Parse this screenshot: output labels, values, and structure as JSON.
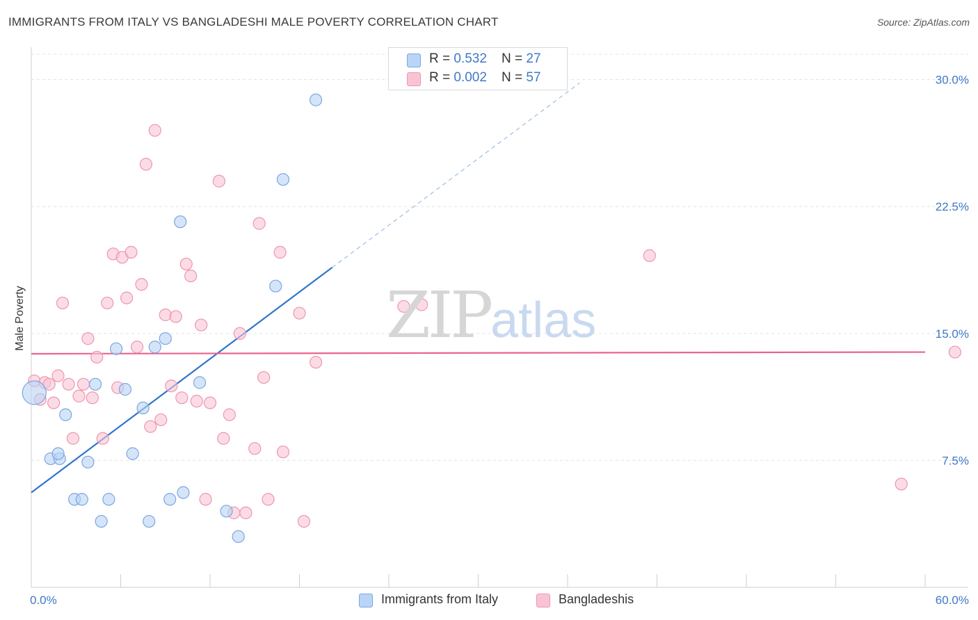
{
  "chart_data": {
    "type": "scatter",
    "title": "IMMIGRANTS FROM ITALY VS BANGLADESHI MALE POVERTY CORRELATION CHART",
    "source": "Source: ZipAtlas.com",
    "ylabel": "Male Poverty",
    "xlabel": "",
    "xlim": [
      0,
      60
    ],
    "ylim": [
      0,
      31.5
    ],
    "x_tick_labels": [
      "0.0%",
      "60.0%"
    ],
    "y_ticks": [
      7.5,
      15.0,
      22.5,
      30.0
    ],
    "y_tick_labels": [
      "7.5%",
      "15.0%",
      "22.5%",
      "30.0%"
    ],
    "colors": {
      "italy_fill": "#b9d4f5",
      "italy_stroke": "#7aa6e0",
      "italy_line": "#2f74cc",
      "bangladeshi_fill": "#f8c4d3",
      "bangladeshi_stroke": "#ee95b0",
      "bangladeshi_line": "#e8648f",
      "tick_text": "#3f78c8",
      "grid": "#e3e3e3"
    },
    "legend": {
      "rows": [
        {
          "r_label": "R = ",
          "r_value": "0.532",
          "n_label": "N = ",
          "n_value": "27"
        },
        {
          "r_label": "R = ",
          "r_value": "0.002",
          "n_label": "N = ",
          "n_value": "57"
        }
      ]
    },
    "series": [
      {
        "name": "Immigrants from Italy",
        "trend": {
          "x0": 0,
          "y0": 5.6,
          "x1": 20.2,
          "y1": 18.9,
          "dash_x1": 36.8,
          "dash_y1": 29.8
        },
        "points": [
          [
            0.2,
            11.5
          ],
          [
            1.3,
            7.6
          ],
          [
            1.9,
            7.6
          ],
          [
            1.8,
            7.9
          ],
          [
            2.3,
            10.2
          ],
          [
            2.9,
            5.2
          ],
          [
            3.4,
            5.2
          ],
          [
            3.8,
            7.4
          ],
          [
            4.3,
            12.0
          ],
          [
            4.7,
            3.9
          ],
          [
            5.2,
            5.2
          ],
          [
            5.7,
            14.1
          ],
          [
            6.3,
            11.7
          ],
          [
            6.8,
            7.9
          ],
          [
            7.5,
            10.6
          ],
          [
            7.9,
            3.9
          ],
          [
            8.3,
            14.2
          ],
          [
            9.0,
            14.7
          ],
          [
            9.3,
            5.2
          ],
          [
            10.0,
            21.6
          ],
          [
            10.2,
            5.6
          ],
          [
            11.3,
            12.1
          ],
          [
            13.1,
            4.5
          ],
          [
            13.9,
            3.0
          ],
          [
            16.4,
            17.8
          ],
          [
            16.9,
            24.1
          ],
          [
            19.1,
            28.8
          ]
        ]
      },
      {
        "name": "Bangladeshis",
        "trend": {
          "x0": 0,
          "y0": 13.8,
          "x1": 60,
          "y1": 13.9
        },
        "points": [
          [
            0.2,
            12.2
          ],
          [
            0.6,
            11.1
          ],
          [
            0.9,
            12.1
          ],
          [
            1.2,
            12.0
          ],
          [
            1.5,
            10.9
          ],
          [
            1.8,
            12.5
          ],
          [
            2.1,
            16.8
          ],
          [
            2.5,
            12.0
          ],
          [
            2.8,
            8.8
          ],
          [
            3.2,
            11.3
          ],
          [
            3.5,
            12.0
          ],
          [
            3.8,
            14.7
          ],
          [
            4.1,
            11.2
          ],
          [
            4.4,
            13.6
          ],
          [
            4.8,
            8.8
          ],
          [
            5.1,
            16.8
          ],
          [
            5.5,
            19.7
          ],
          [
            5.8,
            11.8
          ],
          [
            6.1,
            19.5
          ],
          [
            6.4,
            17.1
          ],
          [
            6.7,
            19.8
          ],
          [
            7.1,
            14.2
          ],
          [
            7.4,
            17.9
          ],
          [
            7.7,
            25.0
          ],
          [
            8.0,
            9.5
          ],
          [
            8.3,
            27.0
          ],
          [
            8.7,
            9.9
          ],
          [
            9.0,
            16.1
          ],
          [
            9.4,
            11.9
          ],
          [
            9.7,
            16.0
          ],
          [
            10.1,
            11.2
          ],
          [
            10.4,
            19.1
          ],
          [
            10.7,
            18.4
          ],
          [
            11.1,
            11.0
          ],
          [
            11.4,
            15.5
          ],
          [
            11.7,
            5.2
          ],
          [
            12.0,
            10.9
          ],
          [
            12.6,
            24.0
          ],
          [
            12.9,
            8.8
          ],
          [
            13.3,
            10.2
          ],
          [
            13.6,
            4.4
          ],
          [
            14.0,
            15.0
          ],
          [
            14.4,
            4.4
          ],
          [
            15.0,
            8.2
          ],
          [
            15.3,
            21.5
          ],
          [
            15.6,
            12.4
          ],
          [
            15.9,
            5.2
          ],
          [
            16.7,
            19.8
          ],
          [
            16.9,
            8.0
          ],
          [
            18.0,
            16.2
          ],
          [
            18.3,
            3.9
          ],
          [
            19.1,
            13.3
          ],
          [
            25.0,
            16.6
          ],
          [
            26.2,
            16.7
          ],
          [
            41.5,
            19.6
          ],
          [
            58.4,
            6.1
          ],
          [
            62.0,
            13.9
          ]
        ]
      }
    ]
  }
}
